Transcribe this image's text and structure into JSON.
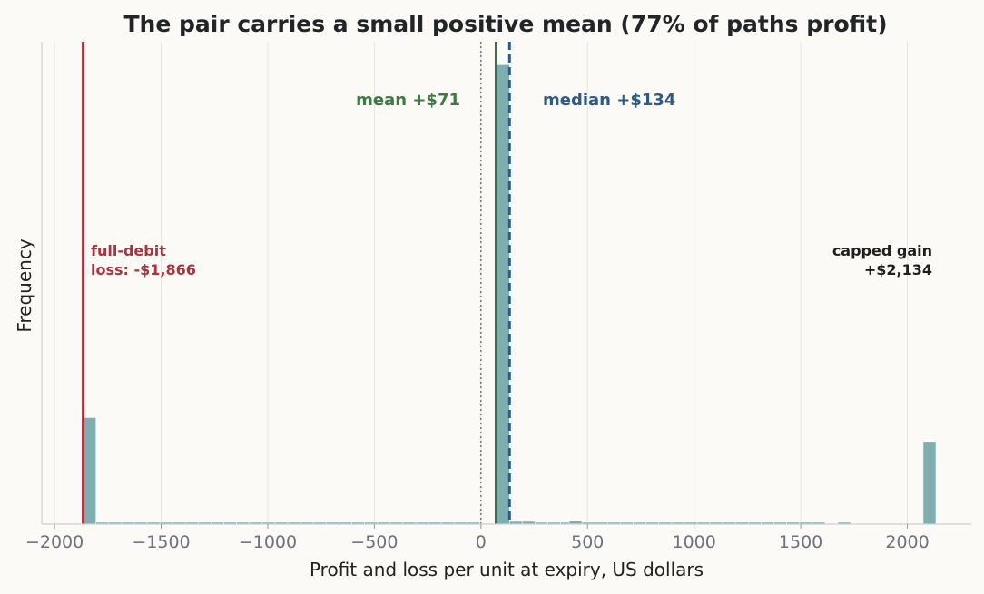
{
  "chart_data": {
    "type": "bar",
    "title": "The pair carries a small positive mean (77% of paths profit)",
    "xlabel": "Profit and loss per unit at expiry, US dollars",
    "ylabel": "Frequency",
    "xlim": [
      -2060,
      2300
    ],
    "ylim": [
      0,
      1.05
    ],
    "x_ticks": [
      -2000,
      -1500,
      -1000,
      -500,
      0,
      500,
      1000,
      1500,
      2000
    ],
    "x_tick_labels": [
      "−2000",
      "−1500",
      "−1000",
      "−500",
      "0",
      "500",
      "1000",
      "1500",
      "2000"
    ],
    "grid": "vertical",
    "bar_color": "#7eaeb0",
    "bin_width": 60,
    "bins": [
      {
        "x0": -1866,
        "value": 0.232
      },
      {
        "x0": -1806,
        "value": 0.004
      },
      {
        "x0": -1746,
        "value": 0.004
      },
      {
        "x0": -1686,
        "value": 0.004
      },
      {
        "x0": -1626,
        "value": 0.004
      },
      {
        "x0": -1566,
        "value": 0.004
      },
      {
        "x0": -1506,
        "value": 0.004
      },
      {
        "x0": -1446,
        "value": 0.004
      },
      {
        "x0": -1386,
        "value": 0.004
      },
      {
        "x0": -1326,
        "value": 0.004
      },
      {
        "x0": -1266,
        "value": 0.004
      },
      {
        "x0": -1206,
        "value": 0.004
      },
      {
        "x0": -1146,
        "value": 0.004
      },
      {
        "x0": -1086,
        "value": 0.004
      },
      {
        "x0": -1026,
        "value": 0.004
      },
      {
        "x0": -966,
        "value": 0.004
      },
      {
        "x0": -906,
        "value": 0.004
      },
      {
        "x0": -846,
        "value": 0.004
      },
      {
        "x0": -786,
        "value": 0.004
      },
      {
        "x0": -726,
        "value": 0.004
      },
      {
        "x0": -666,
        "value": 0.004
      },
      {
        "x0": -606,
        "value": 0.004
      },
      {
        "x0": -546,
        "value": 0.004
      },
      {
        "x0": -486,
        "value": 0.004
      },
      {
        "x0": -426,
        "value": 0.004
      },
      {
        "x0": -366,
        "value": 0.004
      },
      {
        "x0": -306,
        "value": 0.004
      },
      {
        "x0": -246,
        "value": 0.004
      },
      {
        "x0": -186,
        "value": 0.004
      },
      {
        "x0": -126,
        "value": 0.004
      },
      {
        "x0": -66,
        "value": 0.004
      },
      {
        "x0": 74,
        "value": 1.0
      },
      {
        "x0": 134,
        "value": 0.006
      },
      {
        "x0": 194,
        "value": 0.006
      },
      {
        "x0": 254,
        "value": 0.004
      },
      {
        "x0": 314,
        "value": 0.004
      },
      {
        "x0": 374,
        "value": 0.004
      },
      {
        "x0": 414,
        "value": 0.007
      },
      {
        "x0": 474,
        "value": 0.004
      },
      {
        "x0": 534,
        "value": 0.004
      },
      {
        "x0": 594,
        "value": 0.004
      },
      {
        "x0": 654,
        "value": 0.004
      },
      {
        "x0": 714,
        "value": 0.004
      },
      {
        "x0": 774,
        "value": 0.004
      },
      {
        "x0": 834,
        "value": 0.004
      },
      {
        "x0": 894,
        "value": 0.004
      },
      {
        "x0": 954,
        "value": 0.004
      },
      {
        "x0": 1014,
        "value": 0.004
      },
      {
        "x0": 1074,
        "value": 0.004
      },
      {
        "x0": 1134,
        "value": 0.004
      },
      {
        "x0": 1194,
        "value": 0.004
      },
      {
        "x0": 1254,
        "value": 0.004
      },
      {
        "x0": 1314,
        "value": 0.004
      },
      {
        "x0": 1374,
        "value": 0.004
      },
      {
        "x0": 1434,
        "value": 0.004
      },
      {
        "x0": 1494,
        "value": 0.004
      },
      {
        "x0": 1554,
        "value": 0.004
      },
      {
        "x0": 1674,
        "value": 0.004
      },
      {
        "x0": 2074,
        "value": 0.18
      }
    ],
    "reference_lines": [
      {
        "name": "full-debit-line",
        "x": -1866,
        "color": "#a8343e",
        "style": "solid"
      },
      {
        "name": "zero-line",
        "x": 0,
        "color": "#7a6a6a",
        "style": "dotted"
      },
      {
        "name": "mean-line",
        "x": 71,
        "color": "#3c7040",
        "style": "solid"
      },
      {
        "name": "median-line",
        "x": 134,
        "color": "#2e5a86",
        "style": "dashed"
      }
    ],
    "annotations": {
      "mean": {
        "text": "mean +$71",
        "color": "#3c7a42"
      },
      "median": {
        "text": "median +$134",
        "color": "#2e5a86"
      },
      "loss": {
        "line1": "full-debit",
        "line2": "loss: -$1,866",
        "color": "#a8343e"
      },
      "gain": {
        "line1": "capped gain",
        "line2": "+$2,134",
        "color": "#1f1f1f"
      }
    }
  }
}
